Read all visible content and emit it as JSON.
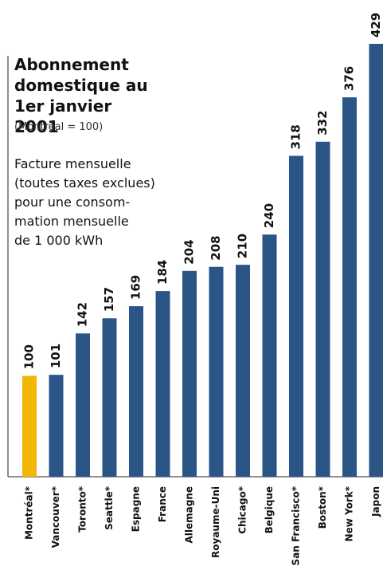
{
  "chart_data": {
    "type": "bar",
    "title": "Abonnement domestique au 1er janvier 2001",
    "subtitle": "(Montréal = 100)",
    "annotation": [
      "Facture mensuelle",
      "(toutes taxes exclues)",
      "pour une consom-",
      "mation mensuelle",
      "de 1 000 kWh"
    ],
    "categories": [
      "Montréal*",
      "Vancouver*",
      "Toronto*",
      "Seattle*",
      "Espagne",
      "France",
      "Allemagne",
      "Royaume-Uni",
      "Chicago*",
      "Belgique",
      "San Francisco*",
      "Boston*",
      "New York*",
      "Japon"
    ],
    "values": [
      100,
      101,
      142,
      157,
      169,
      184,
      204,
      208,
      210,
      240,
      318,
      332,
      376,
      429
    ],
    "colors": [
      "#f2b705",
      "#2b5587",
      "#2b5587",
      "#2b5587",
      "#2b5587",
      "#2b5587",
      "#2b5587",
      "#2b5587",
      "#2b5587",
      "#2b5587",
      "#2b5587",
      "#2b5587",
      "#2b5587",
      "#2b5587"
    ]
  }
}
